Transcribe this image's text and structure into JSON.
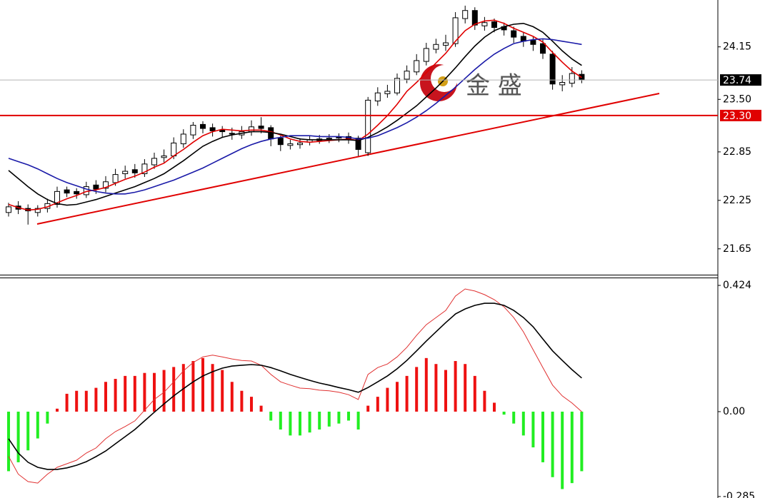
{
  "chart_data": [
    {
      "type": "candlestick",
      "open": [
        22.1,
        22.18,
        22.15,
        22.1,
        22.15,
        22.2,
        22.38,
        22.36,
        22.32,
        22.44,
        22.4,
        22.47,
        22.58,
        22.63,
        22.58,
        22.69,
        22.78,
        22.8,
        22.95,
        23.06,
        23.19,
        23.15,
        23.12,
        23.08,
        23.06,
        23.1,
        23.17,
        23.15,
        23.02,
        22.93,
        22.94,
        22.97,
        22.99,
        23.01,
        23.02,
        23.04,
        23.02,
        22.84,
        23.48,
        23.57,
        23.58,
        23.75,
        23.84,
        23.97,
        24.12,
        24.17,
        24.19,
        24.5,
        24.6,
        24.41,
        24.46,
        24.4,
        24.35,
        24.28,
        24.23,
        24.19,
        24.06,
        23.68,
        23.7,
        23.81
      ],
      "high": [
        22.22,
        22.24,
        22.2,
        22.19,
        22.27,
        22.42,
        22.42,
        22.4,
        22.48,
        22.5,
        22.55,
        22.64,
        22.68,
        22.7,
        22.76,
        22.84,
        22.88,
        23.03,
        23.13,
        23.22,
        23.23,
        23.2,
        23.17,
        23.15,
        23.17,
        23.24,
        23.28,
        23.18,
        23.05,
        23.0,
        23.02,
        23.05,
        23.06,
        23.07,
        23.08,
        23.09,
        23.05,
        23.53,
        23.65,
        23.68,
        23.82,
        23.92,
        24.06,
        24.2,
        24.25,
        24.3,
        24.58,
        24.66,
        24.64,
        24.52,
        24.5,
        24.45,
        24.4,
        24.33,
        24.28,
        24.24,
        24.1,
        23.8,
        23.9,
        23.86
      ],
      "low": [
        22.05,
        22.08,
        21.95,
        22.05,
        22.1,
        22.16,
        22.29,
        22.27,
        22.28,
        22.33,
        22.35,
        22.43,
        22.52,
        22.53,
        22.54,
        22.64,
        22.72,
        22.76,
        22.9,
        23.01,
        23.08,
        23.04,
        23.03,
        23.0,
        23.01,
        23.05,
        23.08,
        22.92,
        22.86,
        22.88,
        22.89,
        22.93,
        22.95,
        22.96,
        22.97,
        22.95,
        22.8,
        22.8,
        23.42,
        23.52,
        23.55,
        23.7,
        23.8,
        23.92,
        24.07,
        24.1,
        24.15,
        24.44,
        24.36,
        24.35,
        24.33,
        24.29,
        24.2,
        24.15,
        24.1,
        24.0,
        23.62,
        23.6,
        23.65,
        23.7
      ],
      "close": [
        22.17,
        22.14,
        22.12,
        22.15,
        22.21,
        22.36,
        22.34,
        22.33,
        22.42,
        22.39,
        22.48,
        22.57,
        22.61,
        22.59,
        22.7,
        22.77,
        22.8,
        22.96,
        23.07,
        23.18,
        23.14,
        23.11,
        23.1,
        23.07,
        23.1,
        23.16,
        23.14,
        23.01,
        22.94,
        22.95,
        22.96,
        23.0,
        23.01,
        23.02,
        23.03,
        23.01,
        22.88,
        23.49,
        23.58,
        23.6,
        23.76,
        23.85,
        23.98,
        24.13,
        24.18,
        24.2,
        24.51,
        24.6,
        24.42,
        24.45,
        24.39,
        24.36,
        24.27,
        24.22,
        24.18,
        24.07,
        23.69,
        23.71,
        23.82,
        23.74
      ],
      "up_color": "#ffffff",
      "down_color": "#000000",
      "outline_color": "#000000",
      "lines": [
        {
          "color": "#e00000",
          "values": [
            22.2,
            22.16,
            22.13,
            22.14,
            22.17,
            22.22,
            22.27,
            22.31,
            22.36,
            22.38,
            22.41,
            22.46,
            22.51,
            22.55,
            22.6,
            22.66,
            22.71,
            22.8,
            22.88,
            22.97,
            23.05,
            23.1,
            23.13,
            23.12,
            23.11,
            23.12,
            23.12,
            23.1,
            23.06,
            23.01,
            22.98,
            22.97,
            22.98,
            22.99,
            23.0,
            23.01,
            22.99,
            23.07,
            23.18,
            23.3,
            23.44,
            23.6,
            23.71,
            23.83,
            23.95,
            24.07,
            24.22,
            24.35,
            24.43,
            24.47,
            24.48,
            24.44,
            24.38,
            24.33,
            24.28,
            24.21,
            24.08,
            23.96,
            23.85,
            23.77
          ]
        },
        {
          "color": "#000000",
          "values": [
            22.62,
            22.52,
            22.42,
            22.33,
            22.26,
            22.21,
            22.19,
            22.2,
            22.23,
            22.26,
            22.3,
            22.34,
            22.38,
            22.42,
            22.47,
            22.52,
            22.58,
            22.66,
            22.74,
            22.83,
            22.92,
            22.98,
            23.03,
            23.06,
            23.08,
            23.1,
            23.1,
            23.09,
            23.07,
            23.04,
            23.01,
            23.0,
            23.0,
            23.0,
            23.0,
            23.0,
            22.99,
            23.03,
            23.09,
            23.16,
            23.24,
            23.33,
            23.42,
            23.53,
            23.64,
            23.76,
            23.89,
            24.03,
            24.16,
            24.27,
            24.35,
            24.4,
            24.43,
            24.44,
            24.4,
            24.33,
            24.22,
            24.1,
            24.0,
            23.92
          ]
        },
        {
          "color": "#1a1aa8",
          "values": [
            22.77,
            22.73,
            22.69,
            22.64,
            22.58,
            22.52,
            22.47,
            22.43,
            22.39,
            22.36,
            22.34,
            22.33,
            22.33,
            22.35,
            22.38,
            22.42,
            22.46,
            22.5,
            22.55,
            22.6,
            22.65,
            22.71,
            22.77,
            22.83,
            22.89,
            22.94,
            22.98,
            23.01,
            23.03,
            23.05,
            23.05,
            23.05,
            23.04,
            23.04,
            23.04,
            23.03,
            23.01,
            23.02,
            23.05,
            23.1,
            23.15,
            23.21,
            23.28,
            23.36,
            23.45,
            23.55,
            23.65,
            23.76,
            23.87,
            23.97,
            24.06,
            24.13,
            24.19,
            24.22,
            24.24,
            24.25,
            24.24,
            24.22,
            24.2,
            24.18
          ]
        }
      ],
      "price_markers": [
        {
          "value": 23.74,
          "label": "23.74",
          "color": "#000000",
          "line_color": "#b4b4b4"
        },
        {
          "value": 23.3,
          "label": "23.30",
          "color": "#e00000",
          "line_color": "#e00000"
        }
      ],
      "ylim": [
        21.33,
        24.73
      ],
      "yticks": [
        24.15,
        {
          "value": 23.5,
          "label": "23.50"
        },
        22.85,
        22.25,
        21.65
      ],
      "watermark": "金 盛"
    },
    {
      "type": "macd",
      "histogram": [
        -0.2,
        -0.17,
        -0.13,
        -0.09,
        -0.04,
        0.01,
        0.06,
        0.07,
        0.07,
        0.08,
        0.1,
        0.11,
        0.12,
        0.12,
        0.13,
        0.13,
        0.14,
        0.15,
        0.16,
        0.17,
        0.18,
        0.16,
        0.14,
        0.1,
        0.07,
        0.05,
        0.02,
        -0.03,
        -0.06,
        -0.08,
        -0.08,
        -0.07,
        -0.06,
        -0.05,
        -0.04,
        -0.03,
        -0.06,
        0.02,
        0.05,
        0.08,
        0.1,
        0.12,
        0.15,
        0.18,
        0.16,
        0.14,
        0.17,
        0.16,
        0.12,
        0.07,
        0.03,
        -0.01,
        -0.04,
        -0.08,
        -0.12,
        -0.17,
        -0.22,
        -0.26,
        -0.24,
        -0.2
      ],
      "up_color": "#ee1111",
      "down_color": "#22ee22",
      "lines": [
        {
          "color": "#e03030",
          "values": [
            -0.15,
            -0.21,
            -0.235,
            -0.24,
            -0.21,
            -0.187,
            -0.175,
            -0.163,
            -0.139,
            -0.122,
            -0.091,
            -0.067,
            -0.05,
            -0.031,
            0.005,
            0.041,
            0.065,
            0.1,
            0.137,
            0.165,
            0.184,
            0.19,
            0.184,
            0.177,
            0.172,
            0.17,
            0.156,
            0.125,
            0.1,
            0.089,
            0.079,
            0.077,
            0.072,
            0.07,
            0.065,
            0.057,
            0.041,
            0.125,
            0.148,
            0.16,
            0.184,
            0.216,
            0.256,
            0.292,
            0.316,
            0.34,
            0.388,
            0.412,
            0.405,
            0.393,
            0.376,
            0.352,
            0.316,
            0.268,
            0.208,
            0.148,
            0.089,
            0.053,
            0.029,
            0.0
          ]
        },
        {
          "color": "#000000",
          "values": [
            -0.091,
            -0.139,
            -0.17,
            -0.187,
            -0.194,
            -0.194,
            -0.189,
            -0.18,
            -0.168,
            -0.151,
            -0.132,
            -0.108,
            -0.084,
            -0.06,
            -0.031,
            -0.002,
            0.026,
            0.053,
            0.077,
            0.1,
            0.12,
            0.134,
            0.146,
            0.153,
            0.156,
            0.158,
            0.156,
            0.148,
            0.137,
            0.125,
            0.115,
            0.105,
            0.096,
            0.089,
            0.081,
            0.074,
            0.065,
            0.081,
            0.1,
            0.12,
            0.144,
            0.172,
            0.204,
            0.237,
            0.268,
            0.299,
            0.328,
            0.345,
            0.357,
            0.364,
            0.364,
            0.357,
            0.34,
            0.316,
            0.285,
            0.244,
            0.204,
            0.172,
            0.141,
            0.113
          ]
        }
      ],
      "ylim": [
        -0.29,
        0.448
      ],
      "yticks": [
        0.424,
        {
          "value": 0,
          "label": "0.00"
        },
        -0.285
      ]
    }
  ]
}
